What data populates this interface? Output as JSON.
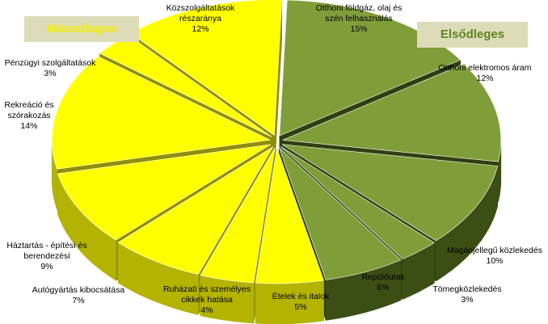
{
  "legend": {
    "secondary": "Másodlagos",
    "primary": "Elsődleges"
  },
  "colors": {
    "primary_top": "#7f9e3a",
    "primary_side": "#3b4f14",
    "secondary_top": "#ffff00",
    "secondary_side": "#b3b300"
  },
  "chart_data": {
    "type": "pie",
    "title": "",
    "series": [
      {
        "name": "Elsődleges",
        "color": "#7f9e3a"
      },
      {
        "name": "Másodlagos",
        "color": "#ffff00"
      }
    ],
    "slices": [
      {
        "label_lines": [
          "Otthoni földgáz, olaj és",
          "szén felhasználás"
        ],
        "value": 15,
        "percent": "15%",
        "group": "primary"
      },
      {
        "label_lines": [
          "Otthoni elektromos áram"
        ],
        "value": 12,
        "percent": "12%",
        "group": "primary"
      },
      {
        "label_lines": [
          "Magánjellegű közlekedés"
        ],
        "value": 10,
        "percent": "10%",
        "group": "primary"
      },
      {
        "label_lines": [
          "Tömegközlekedés"
        ],
        "value": 3,
        "percent": "3%",
        "group": "primary"
      },
      {
        "label_lines": [
          "Repülőutak"
        ],
        "value": 6,
        "percent": "6%",
        "group": "primary"
      },
      {
        "label_lines": [
          "Ételek és italok"
        ],
        "value": 5,
        "percent": "5%",
        "group": "secondary"
      },
      {
        "label_lines": [
          "Ruházati és személyes",
          "cikkek hatása"
        ],
        "value": 4,
        "percent": "4%",
        "group": "secondary"
      },
      {
        "label_lines": [
          "Autógyártás kibocsátása"
        ],
        "value": 7,
        "percent": "7%",
        "group": "secondary"
      },
      {
        "label_lines": [
          "Háztartás - építési és",
          "berendezési"
        ],
        "value": 9,
        "percent": "9%",
        "group": "secondary"
      },
      {
        "label_lines": [
          "Rekreáció és",
          "szórakozás"
        ],
        "value": 14,
        "percent": "14%",
        "group": "secondary"
      },
      {
        "label_lines": [
          "Pénzügyi szolgáltatások"
        ],
        "value": 3,
        "percent": "3%",
        "group": "secondary"
      },
      {
        "label_lines": [
          "Közszolgáltatások",
          "részaránya"
        ],
        "value": 12,
        "percent": "12%",
        "group": "secondary"
      }
    ]
  }
}
